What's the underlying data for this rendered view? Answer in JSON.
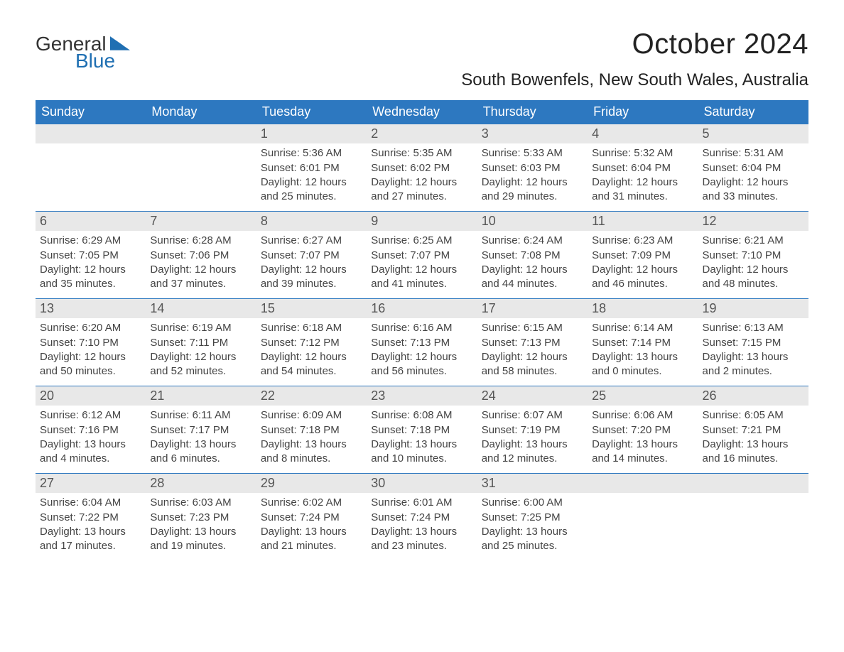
{
  "logo": {
    "line1": "General",
    "line2": "Blue",
    "color_general": "#333333",
    "color_blue": "#1f6fb2",
    "wedge_color": "#1f6fb2"
  },
  "header": {
    "month_title": "October 2024",
    "location": "South Bowenfels, New South Wales, Australia"
  },
  "colors": {
    "header_band": "#2d78c0",
    "header_text": "#ffffff",
    "daynum_bg": "#e8e8e8",
    "daynum_text": "#555555",
    "body_text": "#444444",
    "week_border": "#2d78c0",
    "page_bg": "#ffffff"
  },
  "weekdays": [
    "Sunday",
    "Monday",
    "Tuesday",
    "Wednesday",
    "Thursday",
    "Friday",
    "Saturday"
  ],
  "weeks": [
    [
      {
        "day": "",
        "sunrise": "",
        "sunset": "",
        "daylight": ""
      },
      {
        "day": "",
        "sunrise": "",
        "sunset": "",
        "daylight": ""
      },
      {
        "day": "1",
        "sunrise": "Sunrise: 5:36 AM",
        "sunset": "Sunset: 6:01 PM",
        "daylight": "Daylight: 12 hours and 25 minutes."
      },
      {
        "day": "2",
        "sunrise": "Sunrise: 5:35 AM",
        "sunset": "Sunset: 6:02 PM",
        "daylight": "Daylight: 12 hours and 27 minutes."
      },
      {
        "day": "3",
        "sunrise": "Sunrise: 5:33 AM",
        "sunset": "Sunset: 6:03 PM",
        "daylight": "Daylight: 12 hours and 29 minutes."
      },
      {
        "day": "4",
        "sunrise": "Sunrise: 5:32 AM",
        "sunset": "Sunset: 6:04 PM",
        "daylight": "Daylight: 12 hours and 31 minutes."
      },
      {
        "day": "5",
        "sunrise": "Sunrise: 5:31 AM",
        "sunset": "Sunset: 6:04 PM",
        "daylight": "Daylight: 12 hours and 33 minutes."
      }
    ],
    [
      {
        "day": "6",
        "sunrise": "Sunrise: 6:29 AM",
        "sunset": "Sunset: 7:05 PM",
        "daylight": "Daylight: 12 hours and 35 minutes."
      },
      {
        "day": "7",
        "sunrise": "Sunrise: 6:28 AM",
        "sunset": "Sunset: 7:06 PM",
        "daylight": "Daylight: 12 hours and 37 minutes."
      },
      {
        "day": "8",
        "sunrise": "Sunrise: 6:27 AM",
        "sunset": "Sunset: 7:07 PM",
        "daylight": "Daylight: 12 hours and 39 minutes."
      },
      {
        "day": "9",
        "sunrise": "Sunrise: 6:25 AM",
        "sunset": "Sunset: 7:07 PM",
        "daylight": "Daylight: 12 hours and 41 minutes."
      },
      {
        "day": "10",
        "sunrise": "Sunrise: 6:24 AM",
        "sunset": "Sunset: 7:08 PM",
        "daylight": "Daylight: 12 hours and 44 minutes."
      },
      {
        "day": "11",
        "sunrise": "Sunrise: 6:23 AM",
        "sunset": "Sunset: 7:09 PM",
        "daylight": "Daylight: 12 hours and 46 minutes."
      },
      {
        "day": "12",
        "sunrise": "Sunrise: 6:21 AM",
        "sunset": "Sunset: 7:10 PM",
        "daylight": "Daylight: 12 hours and 48 minutes."
      }
    ],
    [
      {
        "day": "13",
        "sunrise": "Sunrise: 6:20 AM",
        "sunset": "Sunset: 7:10 PM",
        "daylight": "Daylight: 12 hours and 50 minutes."
      },
      {
        "day": "14",
        "sunrise": "Sunrise: 6:19 AM",
        "sunset": "Sunset: 7:11 PM",
        "daylight": "Daylight: 12 hours and 52 minutes."
      },
      {
        "day": "15",
        "sunrise": "Sunrise: 6:18 AM",
        "sunset": "Sunset: 7:12 PM",
        "daylight": "Daylight: 12 hours and 54 minutes."
      },
      {
        "day": "16",
        "sunrise": "Sunrise: 6:16 AM",
        "sunset": "Sunset: 7:13 PM",
        "daylight": "Daylight: 12 hours and 56 minutes."
      },
      {
        "day": "17",
        "sunrise": "Sunrise: 6:15 AM",
        "sunset": "Sunset: 7:13 PM",
        "daylight": "Daylight: 12 hours and 58 minutes."
      },
      {
        "day": "18",
        "sunrise": "Sunrise: 6:14 AM",
        "sunset": "Sunset: 7:14 PM",
        "daylight": "Daylight: 13 hours and 0 minutes."
      },
      {
        "day": "19",
        "sunrise": "Sunrise: 6:13 AM",
        "sunset": "Sunset: 7:15 PM",
        "daylight": "Daylight: 13 hours and 2 minutes."
      }
    ],
    [
      {
        "day": "20",
        "sunrise": "Sunrise: 6:12 AM",
        "sunset": "Sunset: 7:16 PM",
        "daylight": "Daylight: 13 hours and 4 minutes."
      },
      {
        "day": "21",
        "sunrise": "Sunrise: 6:11 AM",
        "sunset": "Sunset: 7:17 PM",
        "daylight": "Daylight: 13 hours and 6 minutes."
      },
      {
        "day": "22",
        "sunrise": "Sunrise: 6:09 AM",
        "sunset": "Sunset: 7:18 PM",
        "daylight": "Daylight: 13 hours and 8 minutes."
      },
      {
        "day": "23",
        "sunrise": "Sunrise: 6:08 AM",
        "sunset": "Sunset: 7:18 PM",
        "daylight": "Daylight: 13 hours and 10 minutes."
      },
      {
        "day": "24",
        "sunrise": "Sunrise: 6:07 AM",
        "sunset": "Sunset: 7:19 PM",
        "daylight": "Daylight: 13 hours and 12 minutes."
      },
      {
        "day": "25",
        "sunrise": "Sunrise: 6:06 AM",
        "sunset": "Sunset: 7:20 PM",
        "daylight": "Daylight: 13 hours and 14 minutes."
      },
      {
        "day": "26",
        "sunrise": "Sunrise: 6:05 AM",
        "sunset": "Sunset: 7:21 PM",
        "daylight": "Daylight: 13 hours and 16 minutes."
      }
    ],
    [
      {
        "day": "27",
        "sunrise": "Sunrise: 6:04 AM",
        "sunset": "Sunset: 7:22 PM",
        "daylight": "Daylight: 13 hours and 17 minutes."
      },
      {
        "day": "28",
        "sunrise": "Sunrise: 6:03 AM",
        "sunset": "Sunset: 7:23 PM",
        "daylight": "Daylight: 13 hours and 19 minutes."
      },
      {
        "day": "29",
        "sunrise": "Sunrise: 6:02 AM",
        "sunset": "Sunset: 7:24 PM",
        "daylight": "Daylight: 13 hours and 21 minutes."
      },
      {
        "day": "30",
        "sunrise": "Sunrise: 6:01 AM",
        "sunset": "Sunset: 7:24 PM",
        "daylight": "Daylight: 13 hours and 23 minutes."
      },
      {
        "day": "31",
        "sunrise": "Sunrise: 6:00 AM",
        "sunset": "Sunset: 7:25 PM",
        "daylight": "Daylight: 13 hours and 25 minutes."
      },
      {
        "day": "",
        "sunrise": "",
        "sunset": "",
        "daylight": ""
      },
      {
        "day": "",
        "sunrise": "",
        "sunset": "",
        "daylight": ""
      }
    ]
  ]
}
